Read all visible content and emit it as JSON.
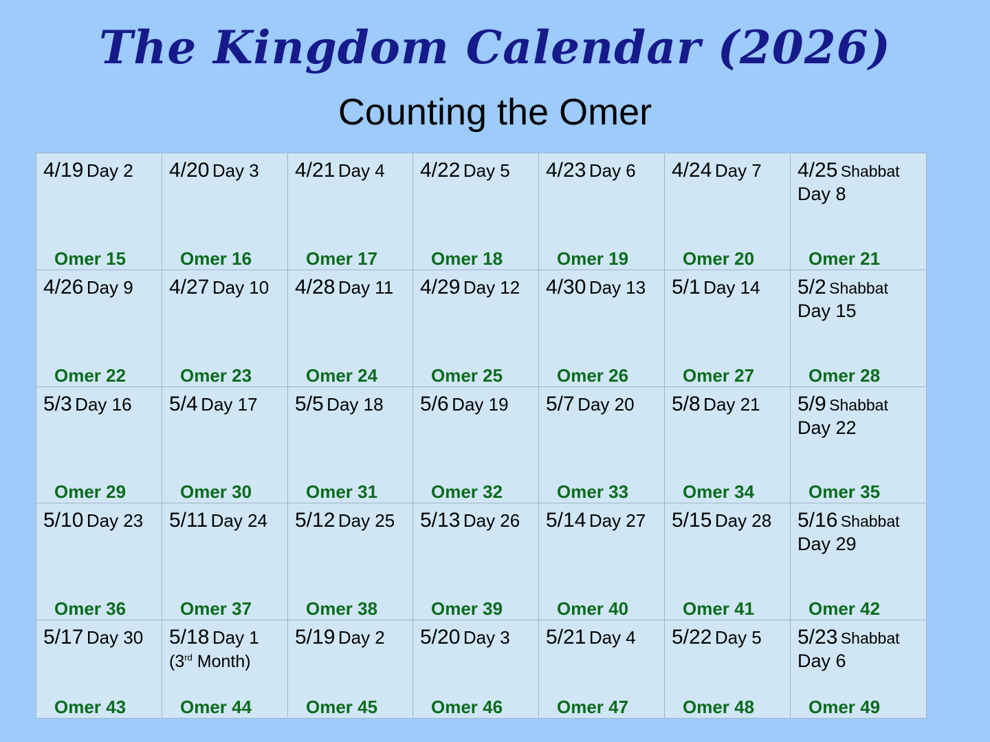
{
  "title": "The Kingdom Calendar (2026)",
  "subtitle": "Counting the Omer",
  "colors": {
    "background": "#9dcbfb",
    "cell": "#d0e6f5",
    "title": "#161a8a",
    "omer": "#0b6b1d"
  },
  "rows": [
    [
      {
        "date": "4/19",
        "day": "Day 2",
        "omer": "Omer 15"
      },
      {
        "date": "4/20",
        "day": "Day 3",
        "omer": "Omer 16"
      },
      {
        "date": "4/21",
        "day": "Day 4",
        "omer": "Omer 17"
      },
      {
        "date": "4/22",
        "day": "Day 5",
        "omer": "Omer 18"
      },
      {
        "date": "4/23",
        "day": "Day 6",
        "omer": "Omer 19"
      },
      {
        "date": "4/24",
        "day": "Day 7",
        "omer": "Omer 20"
      },
      {
        "date": "4/25",
        "tag": "Shabbat",
        "day": "Day 8",
        "omer": "Omer 21"
      }
    ],
    [
      {
        "date": "4/26",
        "day": "Day 9",
        "omer": "Omer 22"
      },
      {
        "date": "4/27",
        "day": "Day 10",
        "omer": "Omer 23"
      },
      {
        "date": "4/28",
        "day": "Day 11",
        "omer": "Omer 24"
      },
      {
        "date": "4/29",
        "day": "Day 12",
        "omer": "Omer 25"
      },
      {
        "date": "4/30",
        "day": "Day 13",
        "omer": "Omer 26"
      },
      {
        "date": "5/1",
        "day": "Day 14",
        "omer": "Omer 27"
      },
      {
        "date": "5/2",
        "tag": "Shabbat",
        "day": "Day 15",
        "omer": "Omer 28"
      }
    ],
    [
      {
        "date": "5/3",
        "day": "Day 16",
        "omer": "Omer 29"
      },
      {
        "date": "5/4",
        "day": "Day 17",
        "omer": "Omer 30"
      },
      {
        "date": "5/5",
        "day": "Day 18",
        "omer": "Omer 31"
      },
      {
        "date": "5/6",
        "day": "Day 19",
        "omer": "Omer 32"
      },
      {
        "date": "5/7",
        "day": "Day 20",
        "omer": "Omer 33"
      },
      {
        "date": "5/8",
        "day": "Day 21",
        "omer": "Omer 34"
      },
      {
        "date": "5/9",
        "tag": "Shabbat",
        "day": "Day 22",
        "omer": "Omer 35"
      }
    ],
    [
      {
        "date": "5/10",
        "day": "Day 23",
        "omer": "Omer 36"
      },
      {
        "date": "5/11",
        "day": "Day 24",
        "omer": "Omer 37"
      },
      {
        "date": "5/12",
        "day": "Day 25",
        "omer": "Omer 38"
      },
      {
        "date": "5/13",
        "day": "Day 26",
        "omer": "Omer 39"
      },
      {
        "date": "5/14",
        "day": "Day 27",
        "omer": "Omer 40"
      },
      {
        "date": "5/15",
        "day": "Day 28",
        "omer": "Omer 41"
      },
      {
        "date": "5/16",
        "tag": "Shabbat",
        "day": "Day 29",
        "omer": "Omer 42"
      }
    ],
    [
      {
        "date": "5/17",
        "day": "Day 30",
        "omer": "Omer 43"
      },
      {
        "date": "5/18",
        "day": "Day 1",
        "note": {
          "pre": "(3",
          "sup": "rd",
          "post": " Month)"
        },
        "omer": "Omer 44"
      },
      {
        "date": "5/19",
        "day": "Day 2",
        "omer": "Omer 45"
      },
      {
        "date": "5/20",
        "day": "Day 3",
        "omer": "Omer 46"
      },
      {
        "date": "5/21",
        "day": "Day 4",
        "omer": "Omer 47"
      },
      {
        "date": "5/22",
        "day": "Day 5",
        "omer": "Omer 48"
      },
      {
        "date": "5/23",
        "tag": "Shabbat",
        "day": "Day 6",
        "omer": "Omer 49"
      }
    ]
  ]
}
